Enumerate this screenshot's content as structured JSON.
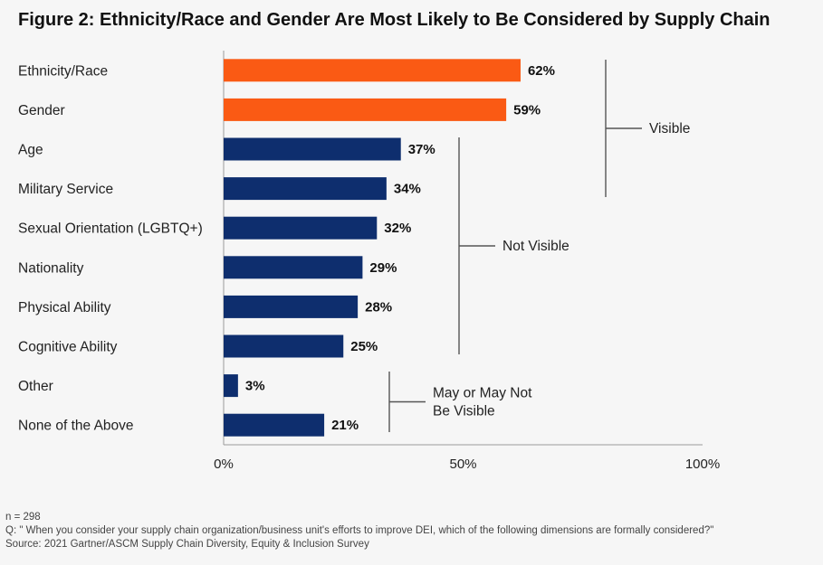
{
  "title": "Figure 2: Ethnicity/Race and Gender Are Most Likely to Be Considered by Supply Chain",
  "chart_data": {
    "type": "bar",
    "orientation": "horizontal",
    "categories": [
      "Ethnicity/Race",
      "Gender",
      "Age",
      "Military Service",
      "Sexual Orientation (LGBTQ+)",
      "Nationality",
      "Physical Ability",
      "Cognitive Ability",
      "Other",
      "None of the Above"
    ],
    "values": [
      62,
      59,
      37,
      34,
      32,
      29,
      28,
      25,
      3,
      21
    ],
    "value_labels": [
      "62%",
      "59%",
      "37%",
      "34%",
      "32%",
      "29%",
      "28%",
      "25%",
      "3%",
      "21%"
    ],
    "bar_colors": [
      "#fa5a14",
      "#fa5a14",
      "#0e2e6e",
      "#0e2e6e",
      "#0e2e6e",
      "#0e2e6e",
      "#0e2e6e",
      "#0e2e6e",
      "#0e2e6e",
      "#0e2e6e"
    ],
    "xlim": [
      0,
      100
    ],
    "xticks": [
      0,
      50,
      100
    ],
    "xtick_labels": [
      "0%",
      "50%",
      "100%"
    ],
    "grid": false,
    "groups": [
      {
        "label_lines": [
          "Visible"
        ],
        "start": 0,
        "end": 3
      },
      {
        "label_lines": [
          "Not Visible"
        ],
        "start": 2,
        "end": 7
      },
      {
        "label_lines": [
          "May or May Not",
          "Be Visible"
        ],
        "start": 8,
        "end": 9
      }
    ]
  },
  "footnotes": {
    "n": "n = 298",
    "question": "Q: \" When you consider your supply chain organization/business unit's efforts to improve DEI, which of the following dimensions are formally considered?\"",
    "source": "Source: 2021 Gartner/ASCM Supply Chain Diversity, Equity & Inclusion Survey"
  },
  "colors": {
    "visible": "#fa5a14",
    "not_visible": "#0e2e6e",
    "background": "#f6f6f6"
  }
}
